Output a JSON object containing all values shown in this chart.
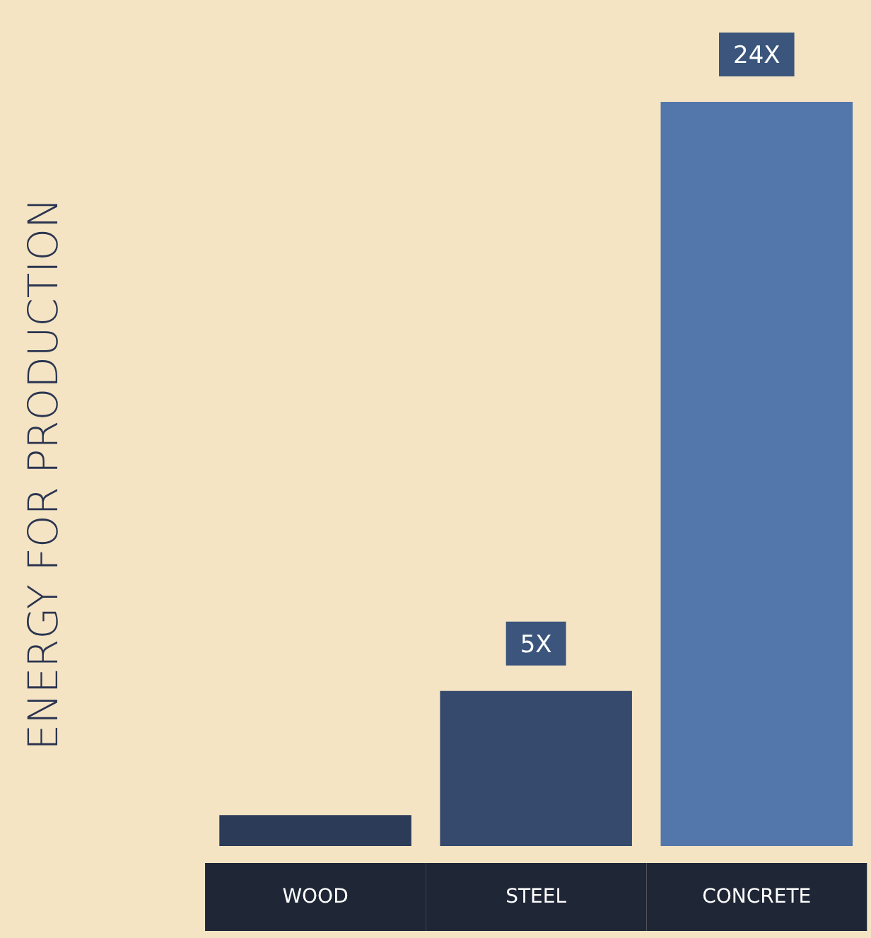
{
  "chart_data": {
    "type": "bar",
    "ylabel": "ENERGY FOR PRODUCTION",
    "categories": [
      "WOOD",
      "STEEL",
      "CONCRETE"
    ],
    "values": [
      1,
      5,
      24
    ],
    "colors": [
      "#2b3b58",
      "#354a6c",
      "#5477ab"
    ],
    "value_labels": [
      null,
      "5X",
      "24X"
    ],
    "grid": false
  }
}
